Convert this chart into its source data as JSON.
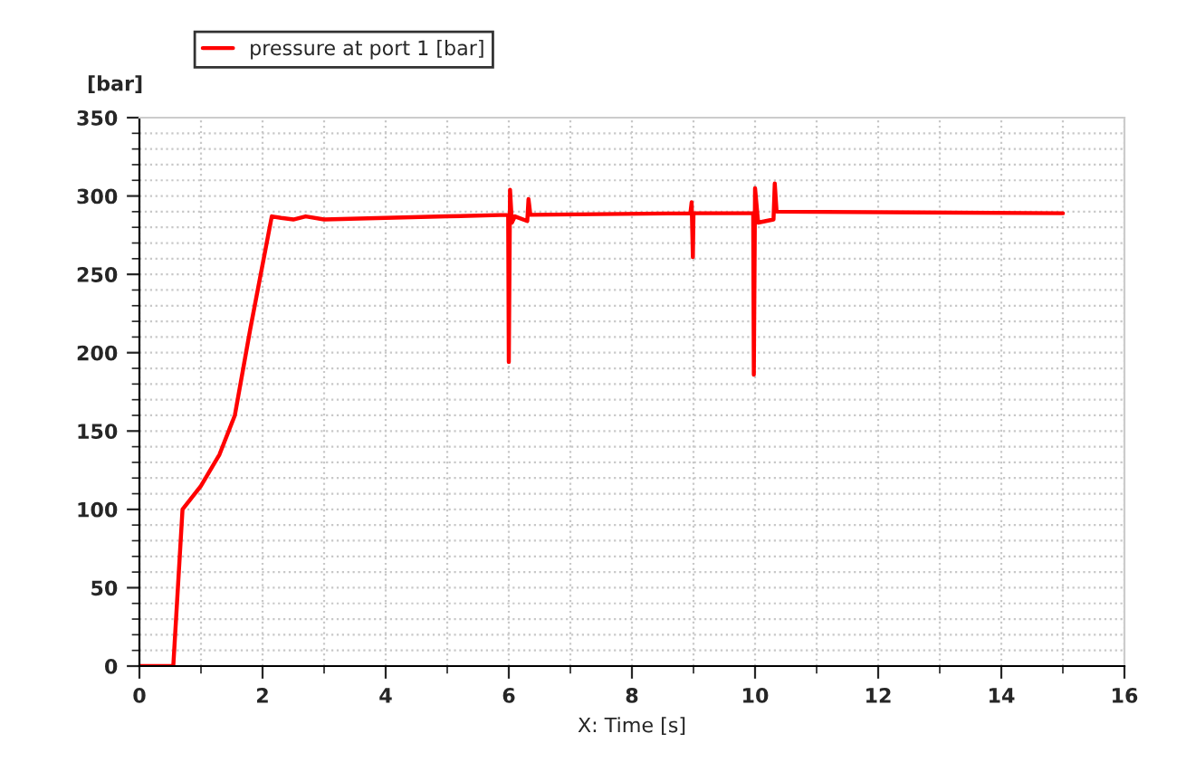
{
  "chart_data": {
    "type": "line",
    "xlabel": "X: Time [s]",
    "ylabel": "[bar]",
    "x": [
      0,
      0.55,
      0.7,
      1.0,
      1.3,
      1.55,
      1.8,
      2.15,
      2.3,
      2.5,
      2.7,
      3.0,
      4,
      5,
      5.99,
      6.0,
      6.02,
      6.05,
      6.1,
      6.3,
      6.32,
      6.35,
      8.95,
      8.97,
      8.99,
      9.0,
      9.97,
      9.98,
      10.0,
      10.05,
      10.3,
      10.32,
      10.35,
      15
    ],
    "series": [
      {
        "name": "pressure at port 1 [bar]",
        "color": "#ff0000",
        "values": [
          0,
          0,
          100,
          115,
          135,
          160,
          215,
          287,
          286,
          285,
          287,
          285,
          286,
          287,
          288,
          194,
          304,
          283,
          287,
          284,
          298,
          288,
          289,
          296,
          261,
          289,
          289,
          186,
          305,
          283,
          285,
          308,
          290,
          289
        ]
      }
    ],
    "xlim": [
      0,
      16
    ],
    "xticks": [
      0,
      2,
      4,
      6,
      8,
      10,
      12,
      14,
      16
    ],
    "ylim": [
      0,
      350
    ],
    "yticks": [
      0,
      50,
      100,
      150,
      200,
      250,
      300,
      350
    ],
    "grid": true,
    "legend": "top left",
    "line_style": "solid",
    "marker": "none"
  }
}
